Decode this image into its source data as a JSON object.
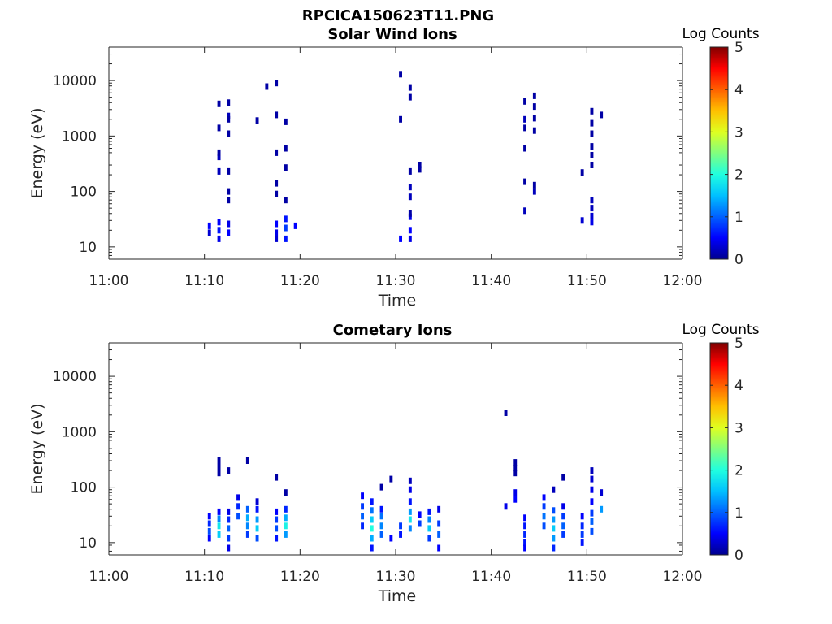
{
  "figure_title": "RPCICA150623T11.PNG",
  "colors": {
    "colormap": [
      "#00008f",
      "#0000ff",
      "#0060ff",
      "#00c0ff",
      "#20ffdf",
      "#80ff80",
      "#dfff20",
      "#ffc000",
      "#ff6000",
      "#ff0000",
      "#800000"
    ],
    "axis": "#262626"
  },
  "chart_data": [
    {
      "type": "heatmap",
      "title": "Solar Wind Ions",
      "xlabel": "Time",
      "ylabel": "Energy (eV)",
      "xlim": [
        "11:00",
        "12:00"
      ],
      "x_ticks": [
        "11:00",
        "11:10",
        "11:20",
        "11:30",
        "11:40",
        "11:50",
        "12:00"
      ],
      "ylim": [
        6,
        40000
      ],
      "y_scale": "log",
      "y_ticks": [
        10,
        100,
        1000,
        10000
      ],
      "y_tick_labels": [
        "10",
        "100",
        "1000",
        "10000"
      ],
      "colorbar": {
        "label": "Log Counts",
        "range": [
          0,
          5
        ],
        "ticks": [
          "0",
          "1",
          "2",
          "3",
          "4",
          "5"
        ]
      },
      "cells": [
        [
          "11:10",
          18,
          0.3
        ],
        [
          "11:10",
          24,
          0.5
        ],
        [
          "11:11",
          14,
          0.4
        ],
        [
          "11:11",
          20,
          0.6
        ],
        [
          "11:11",
          28,
          0.5
        ],
        [
          "11:11",
          230,
          0.2
        ],
        [
          "11:11",
          420,
          0.2
        ],
        [
          "11:11",
          500,
          0.1
        ],
        [
          "11:11",
          1400,
          0.1
        ],
        [
          "11:11",
          3800,
          0.1
        ],
        [
          "11:12",
          18,
          0.5
        ],
        [
          "11:12",
          26,
          0.4
        ],
        [
          "11:12",
          230,
          0.1
        ],
        [
          "11:12",
          1100,
          0.1
        ],
        [
          "11:12",
          2300,
          0.2
        ],
        [
          "11:12",
          100,
          0.1
        ],
        [
          "11:12",
          70,
          0.1
        ],
        [
          "11:12",
          4000,
          0.1
        ],
        [
          "11:12",
          2000,
          0.1
        ],
        [
          "11:15",
          1900,
          0.1
        ],
        [
          "11:16",
          7800,
          0.1
        ],
        [
          "11:17",
          18,
          0.4
        ],
        [
          "11:17",
          26,
          0.5
        ],
        [
          "11:17",
          14,
          0.3
        ],
        [
          "11:17",
          9000,
          0.1
        ],
        [
          "11:17",
          500,
          0.1
        ],
        [
          "11:17",
          140,
          0.1
        ],
        [
          "11:17",
          90,
          0.1
        ],
        [
          "11:17",
          2400,
          0.1
        ],
        [
          "11:18",
          14,
          0.6
        ],
        [
          "11:18",
          22,
          0.8
        ],
        [
          "11:18",
          32,
          0.6
        ],
        [
          "11:18",
          600,
          0.1
        ],
        [
          "11:18",
          270,
          0.1
        ],
        [
          "11:18",
          1800,
          0.1
        ],
        [
          "11:18",
          70,
          0.1
        ],
        [
          "11:19",
          24,
          0.5
        ],
        [
          "11:30",
          14,
          0.5
        ],
        [
          "11:30",
          2000,
          0.1
        ],
        [
          "11:30",
          13000,
          0.1
        ],
        [
          "11:31",
          14,
          0.4
        ],
        [
          "11:31",
          20,
          0.5
        ],
        [
          "11:31",
          35,
          0.4
        ],
        [
          "11:31",
          80,
          0.2
        ],
        [
          "11:31",
          120,
          0.2
        ],
        [
          "11:31",
          230,
          0.1
        ],
        [
          "11:31",
          5000,
          0.1
        ],
        [
          "11:31",
          7500,
          0.1
        ],
        [
          "11:31",
          40,
          0.1
        ],
        [
          "11:32",
          250,
          0.1
        ],
        [
          "11:32",
          300,
          0.1
        ],
        [
          "11:43",
          2000,
          0.2
        ],
        [
          "11:43",
          1400,
          0.1
        ],
        [
          "11:43",
          4200,
          0.1
        ],
        [
          "11:43",
          600,
          0.1
        ],
        [
          "11:43",
          150,
          0.1
        ],
        [
          "11:43",
          45,
          0.2
        ],
        [
          "11:44",
          100,
          0.2
        ],
        [
          "11:44",
          130,
          0.1
        ],
        [
          "11:44",
          5300,
          0.1
        ],
        [
          "11:44",
          3400,
          0.1
        ],
        [
          "11:44",
          1250,
          0.1
        ],
        [
          "11:44",
          2100,
          0.1
        ],
        [
          "11:49",
          30,
          0.3
        ],
        [
          "11:49",
          220,
          0.1
        ],
        [
          "11:50",
          28,
          0.4
        ],
        [
          "11:50",
          2800,
          0.1
        ],
        [
          "11:50",
          1700,
          0.1
        ],
        [
          "11:50",
          1100,
          0.1
        ],
        [
          "11:50",
          650,
          0.1
        ],
        [
          "11:50",
          450,
          0.1
        ],
        [
          "11:50",
          300,
          0.1
        ],
        [
          "11:50",
          50,
          0.2
        ],
        [
          "11:50",
          70,
          0.2
        ],
        [
          "11:50",
          36,
          0.3
        ],
        [
          "11:51",
          2400,
          0.1
        ]
      ]
    },
    {
      "type": "heatmap",
      "title": "Cometary Ions",
      "xlabel": "Time",
      "ylabel": "Energy (eV)",
      "xlim": [
        "11:00",
        "12:00"
      ],
      "x_ticks": [
        "11:00",
        "11:10",
        "11:20",
        "11:30",
        "11:40",
        "11:50",
        "12:00"
      ],
      "ylim": [
        6,
        40000
      ],
      "y_scale": "log",
      "y_ticks": [
        10,
        100,
        1000,
        10000
      ],
      "y_tick_labels": [
        "10",
        "100",
        "1000",
        "10000"
      ],
      "colorbar": {
        "label": "Log Counts",
        "range": [
          0,
          5
        ],
        "ticks": [
          "0",
          "1",
          "2",
          "3",
          "4",
          "5"
        ]
      },
      "cells": [
        [
          "11:10",
          12,
          0.5
        ],
        [
          "11:10",
          16,
          0.9
        ],
        [
          "11:10",
          22,
          0.7
        ],
        [
          "11:10",
          30,
          0.5
        ],
        [
          "11:11",
          14,
          1.6
        ],
        [
          "11:11",
          20,
          1.8
        ],
        [
          "11:11",
          27,
          1.2
        ],
        [
          "11:11",
          36,
          0.5
        ],
        [
          "11:12",
          8,
          0.4
        ],
        [
          "11:12",
          12,
          0.8
        ],
        [
          "11:12",
          18,
          1.0
        ],
        [
          "11:12",
          26,
          0.7
        ],
        [
          "11:12",
          36,
          0.4
        ],
        [
          "11:11",
          180,
          0.1
        ],
        [
          "11:11",
          230,
          0.1
        ],
        [
          "11:11",
          300,
          0.1
        ],
        [
          "11:12",
          200,
          0.1
        ],
        [
          "11:13",
          30,
          0.9
        ],
        [
          "11:13",
          45,
          0.7
        ],
        [
          "11:13",
          65,
          0.4
        ],
        [
          "11:14",
          14,
          0.8
        ],
        [
          "11:14",
          20,
          1.2
        ],
        [
          "11:14",
          28,
          1.4
        ],
        [
          "11:14",
          40,
          1.0
        ],
        [
          "11:14",
          300,
          0.1
        ],
        [
          "11:15",
          12,
          0.9
        ],
        [
          "11:15",
          18,
          1.6
        ],
        [
          "11:15",
          26,
          1.3
        ],
        [
          "11:15",
          40,
          0.6
        ],
        [
          "11:15",
          55,
          0.3
        ],
        [
          "11:17",
          12,
          0.6
        ],
        [
          "11:17",
          18,
          0.9
        ],
        [
          "11:17",
          26,
          0.8
        ],
        [
          "11:17",
          36,
          0.5
        ],
        [
          "11:17",
          150,
          0.1
        ],
        [
          "11:18",
          14,
          1.3
        ],
        [
          "11:18",
          20,
          1.9
        ],
        [
          "11:18",
          28,
          1.4
        ],
        [
          "11:18",
          40,
          0.7
        ],
        [
          "11:18",
          80,
          0.1
        ],
        [
          "11:26",
          20,
          0.7
        ],
        [
          "11:26",
          30,
          1.0
        ],
        [
          "11:26",
          45,
          0.8
        ],
        [
          "11:26",
          70,
          0.5
        ],
        [
          "11:27",
          8,
          0.6
        ],
        [
          "11:27",
          12,
          1.4
        ],
        [
          "11:27",
          18,
          2.0
        ],
        [
          "11:27",
          26,
          1.6
        ],
        [
          "11:27",
          38,
          1.1
        ],
        [
          "11:27",
          55,
          0.6
        ],
        [
          "11:28",
          14,
          1.0
        ],
        [
          "11:28",
          20,
          1.2
        ],
        [
          "11:28",
          30,
          1.1
        ],
        [
          "11:28",
          40,
          0.6
        ],
        [
          "11:28",
          100,
          0.1
        ],
        [
          "11:29",
          12,
          0.5
        ],
        [
          "11:29",
          140,
          0.1
        ],
        [
          "11:30",
          14,
          0.6
        ],
        [
          "11:30",
          20,
          0.8
        ],
        [
          "11:31",
          18,
          1.2
        ],
        [
          "11:31",
          26,
          1.8
        ],
        [
          "11:31",
          36,
          1.3
        ],
        [
          "11:31",
          55,
          0.6
        ],
        [
          "11:31",
          90,
          0.4
        ],
        [
          "11:31",
          130,
          0.2
        ],
        [
          "11:32",
          22,
          0.8
        ],
        [
          "11:32",
          32,
          0.5
        ],
        [
          "11:33",
          12,
          0.8
        ],
        [
          "11:33",
          18,
          1.6
        ],
        [
          "11:33",
          26,
          1.2
        ],
        [
          "11:33",
          36,
          0.6
        ],
        [
          "11:34",
          8,
          0.5
        ],
        [
          "11:34",
          14,
          1.0
        ],
        [
          "11:34",
          22,
          0.8
        ],
        [
          "11:34",
          40,
          0.4
        ],
        [
          "11:41",
          2200,
          0.1
        ],
        [
          "11:41",
          45,
          0.4
        ],
        [
          "11:42",
          60,
          0.5
        ],
        [
          "11:42",
          80,
          0.4
        ],
        [
          "11:42",
          180,
          0.1
        ],
        [
          "11:42",
          220,
          0.1
        ],
        [
          "11:42",
          280,
          0.1
        ],
        [
          "11:43",
          10,
          0.6
        ],
        [
          "11:43",
          14,
          0.7
        ],
        [
          "11:43",
          20,
          0.6
        ],
        [
          "11:43",
          28,
          0.5
        ],
        [
          "11:43",
          8,
          0.5
        ],
        [
          "11:45",
          20,
          0.9
        ],
        [
          "11:45",
          30,
          1.1
        ],
        [
          "11:45",
          45,
          0.8
        ],
        [
          "11:45",
          65,
          0.5
        ],
        [
          "11:46",
          8,
          0.7
        ],
        [
          "11:46",
          12,
          1.3
        ],
        [
          "11:46",
          18,
          1.6
        ],
        [
          "11:46",
          26,
          1.3
        ],
        [
          "11:46",
          38,
          0.9
        ],
        [
          "11:46",
          90,
          0.2
        ],
        [
          "11:47",
          14,
          0.8
        ],
        [
          "11:47",
          20,
          1.0
        ],
        [
          "11:47",
          30,
          0.8
        ],
        [
          "11:47",
          45,
          0.4
        ],
        [
          "11:47",
          150,
          0.1
        ],
        [
          "11:49",
          10,
          0.6
        ],
        [
          "11:49",
          14,
          0.8
        ],
        [
          "11:49",
          20,
          0.7
        ],
        [
          "11:49",
          30,
          0.5
        ],
        [
          "11:50",
          16,
          0.9
        ],
        [
          "11:50",
          24,
          1.0
        ],
        [
          "11:50",
          34,
          0.8
        ],
        [
          "11:50",
          55,
          0.5
        ],
        [
          "11:50",
          90,
          0.4
        ],
        [
          "11:50",
          140,
          0.3
        ],
        [
          "11:50",
          200,
          0.2
        ],
        [
          "11:51",
          40,
          1.3
        ],
        [
          "11:51",
          80,
          0.3
        ]
      ]
    }
  ]
}
